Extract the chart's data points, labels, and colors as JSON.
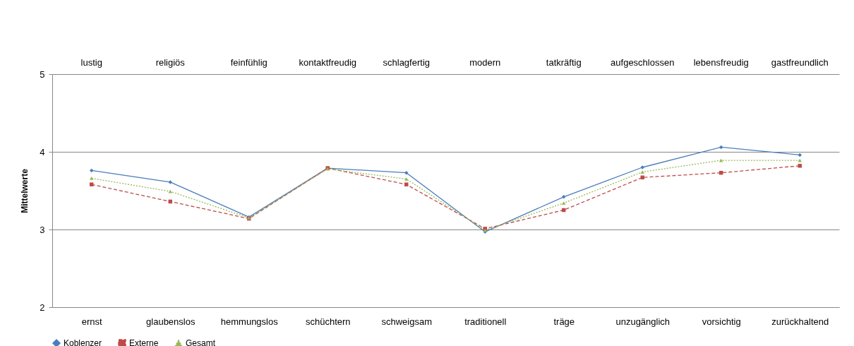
{
  "chart_data": {
    "type": "line",
    "ylabel": "Mittelwerte",
    "categories": [
      "ernst",
      "glaubenslos",
      "hemmungslos",
      "schüchtern",
      "schweigsam",
      "traditionell",
      "träge",
      "unzugänglich",
      "vorsichtig",
      "zurückhaltend"
    ],
    "annotations": [
      "lustig",
      "religiös",
      "feinfühlig",
      "kontaktfreudig",
      "schlagfertig",
      "modern",
      "tatkräftig",
      "aufgeschlossen",
      "lebensfreudig",
      "gastfreundlich"
    ],
    "series": [
      {
        "name": "Koblenzer",
        "color": "#4a7ebb",
        "marker": "diamond",
        "line_style": "solid",
        "values": [
          3.76,
          3.61,
          3.16,
          3.79,
          3.73,
          2.97,
          3.42,
          3.8,
          4.06,
          3.96
        ]
      },
      {
        "name": "Externe",
        "color": "#be4b48",
        "marker": "square",
        "line_style": "dashed",
        "values": [
          3.58,
          3.36,
          3.14,
          3.79,
          3.58,
          3.01,
          3.25,
          3.67,
          3.73,
          3.82
        ]
      },
      {
        "name": "Gesamt",
        "color": "#98b954",
        "marker": "triangle",
        "line_style": "dotted",
        "values": [
          3.66,
          3.49,
          3.15,
          3.78,
          3.65,
          2.99,
          3.34,
          3.74,
          3.89,
          3.89
        ]
      }
    ],
    "ylim": [
      2,
      5
    ],
    "yticks": [
      2,
      3,
      4,
      5
    ],
    "grid": "y",
    "legend": "bottom"
  }
}
